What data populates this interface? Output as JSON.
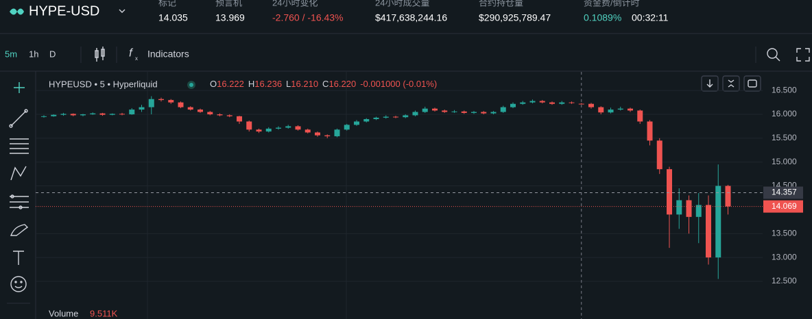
{
  "header": {
    "symbol": "HYPE-USD",
    "stats": [
      {
        "label": "标记",
        "value": "14.035"
      },
      {
        "label": "预言机",
        "value": "13.969"
      },
      {
        "label": "24小时变化",
        "value": "-2.760 / -16.43%"
      },
      {
        "label": "24小时成交量",
        "value": "$417,638,244.16"
      },
      {
        "label": "合约持仓量",
        "value": "$290,925,789.47"
      },
      {
        "label": "资金费/倒计时",
        "value": "0.1089%",
        "value2": "00:32:11"
      }
    ]
  },
  "toolbar": {
    "intervals": [
      "5m",
      "1h",
      "D"
    ],
    "indicators": "Indicators"
  },
  "chart_data": {
    "type": "candlestick",
    "title": "HYPEUSD • 5 • Hyperliquid",
    "legend": [
      {
        "key": "O",
        "value": "16.222"
      },
      {
        "key": "H",
        "value": "16.236"
      },
      {
        "key": "L",
        "value": "16.210"
      },
      {
        "key": "C",
        "value": "16.220"
      }
    ],
    "change": "-0.001000 (-0.01%)",
    "volume_label": "Volume",
    "volume_value": "9.511K",
    "up_color": "#26a69a",
    "down_color": "#ef5350",
    "grid": true,
    "ylim": [
      11.71,
      16.89
    ],
    "yticks": [
      {
        "value": 16.5,
        "label": "16.500"
      },
      {
        "value": 16,
        "label": "16.000"
      },
      {
        "value": 15.5,
        "label": "15.500"
      },
      {
        "value": 15,
        "label": "15.000"
      },
      {
        "value": 14.5,
        "label": "14.500"
      },
      {
        "value": 13.5,
        "label": "13.500"
      },
      {
        "value": 13,
        "label": "13.000"
      },
      {
        "value": 12.5,
        "label": "12.500"
      }
    ],
    "crosshair_price": 14.357,
    "last_price": 14.069,
    "candles": [
      [
        15.95,
        15.98,
        15.93,
        15.96
      ],
      [
        15.96,
        16.0,
        15.95,
        15.99
      ],
      [
        15.99,
        16.03,
        15.97,
        16.01
      ],
      [
        16.01,
        16.02,
        15.96,
        15.98
      ],
      [
        15.98,
        16.01,
        15.96,
        16.0
      ],
      [
        16.0,
        16.04,
        15.99,
        16.02
      ],
      [
        16.02,
        16.03,
        15.97,
        15.99
      ],
      [
        15.99,
        16.02,
        15.98,
        16.01
      ],
      [
        16.01,
        16.03,
        15.98,
        16.0
      ],
      [
        16.0,
        16.13,
        15.99,
        16.1
      ],
      [
        16.1,
        16.2,
        16.05,
        16.15
      ],
      [
        16.15,
        16.38,
        16.0,
        16.32
      ],
      [
        16.32,
        16.35,
        16.27,
        16.3
      ],
      [
        16.3,
        16.32,
        16.22,
        16.25
      ],
      [
        16.25,
        16.27,
        16.13,
        16.15
      ],
      [
        16.15,
        16.17,
        16.08,
        16.1
      ],
      [
        16.1,
        16.12,
        16.03,
        16.05
      ],
      [
        16.05,
        16.07,
        15.98,
        16.0
      ],
      [
        16.0,
        16.02,
        15.96,
        15.98
      ],
      [
        15.98,
        16.0,
        15.94,
        15.96
      ],
      [
        15.96,
        15.97,
        15.8,
        15.85
      ],
      [
        15.85,
        15.87,
        15.64,
        15.68
      ],
      [
        15.68,
        15.7,
        15.61,
        15.64
      ],
      [
        15.64,
        15.73,
        15.62,
        15.7
      ],
      [
        15.7,
        15.75,
        15.68,
        15.72
      ],
      [
        15.72,
        15.78,
        15.7,
        15.75
      ],
      [
        15.75,
        15.77,
        15.66,
        15.68
      ],
      [
        15.68,
        15.7,
        15.6,
        15.62
      ],
      [
        15.62,
        15.64,
        15.53,
        15.56
      ],
      [
        15.56,
        15.58,
        15.5,
        15.54
      ],
      [
        15.54,
        15.7,
        15.52,
        15.68
      ],
      [
        15.68,
        15.8,
        15.66,
        15.78
      ],
      [
        15.78,
        15.88,
        15.76,
        15.85
      ],
      [
        15.85,
        15.92,
        15.83,
        15.9
      ],
      [
        15.9,
        15.95,
        15.88,
        15.93
      ],
      [
        15.93,
        15.98,
        15.91,
        15.95
      ],
      [
        15.95,
        15.97,
        15.92,
        15.94
      ],
      [
        15.94,
        16.0,
        15.92,
        15.98
      ],
      [
        15.98,
        16.08,
        15.96,
        16.05
      ],
      [
        16.05,
        16.16,
        16.03,
        16.12
      ],
      [
        16.12,
        16.14,
        16.06,
        16.08
      ],
      [
        16.08,
        16.1,
        16.03,
        16.05
      ],
      [
        16.05,
        16.09,
        16.03,
        16.06
      ],
      [
        16.06,
        16.08,
        16.01,
        16.03
      ],
      [
        16.03,
        16.07,
        16.01,
        16.05
      ],
      [
        16.05,
        16.07,
        16.0,
        16.02
      ],
      [
        16.02,
        16.07,
        16.0,
        16.05
      ],
      [
        16.05,
        16.18,
        16.03,
        16.15
      ],
      [
        16.15,
        16.25,
        16.13,
        16.22
      ],
      [
        16.22,
        16.28,
        16.2,
        16.25
      ],
      [
        16.25,
        16.31,
        16.23,
        16.28
      ],
      [
        16.28,
        16.3,
        16.23,
        16.25
      ],
      [
        16.25,
        16.27,
        16.2,
        16.22
      ],
      [
        16.22,
        16.28,
        16.2,
        16.25
      ],
      [
        16.25,
        16.27,
        16.22,
        16.24
      ],
      [
        16.222,
        16.236,
        16.21,
        16.22
      ],
      [
        16.22,
        16.24,
        16.12,
        16.15
      ],
      [
        16.15,
        16.17,
        16.0,
        16.04
      ],
      [
        16.04,
        16.14,
        16.02,
        16.1
      ],
      [
        16.1,
        16.16,
        16.08,
        16.12
      ],
      [
        16.12,
        16.14,
        16.05,
        16.08
      ],
      [
        16.08,
        16.1,
        15.8,
        15.85
      ],
      [
        15.85,
        15.88,
        15.35,
        15.45
      ],
      [
        15.45,
        15.5,
        14.75,
        14.85
      ],
      [
        14.85,
        14.9,
        13.2,
        13.9
      ],
      [
        13.9,
        14.45,
        13.6,
        14.2
      ],
      [
        14.2,
        14.3,
        13.5,
        13.85
      ],
      [
        13.85,
        14.35,
        13.3,
        14.1
      ],
      [
        14.1,
        14.3,
        12.85,
        13.0
      ],
      [
        13.0,
        14.95,
        12.55,
        14.5
      ],
      [
        14.5,
        14.52,
        13.9,
        14.069
      ]
    ]
  }
}
